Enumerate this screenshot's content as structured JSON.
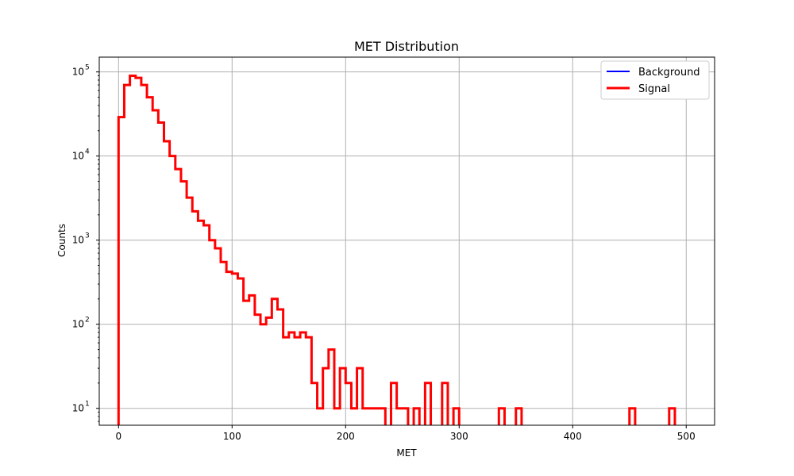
{
  "chart_data": {
    "type": "line",
    "title": "MET Distribution",
    "xlabel": "MET",
    "ylabel": "Counts",
    "x_ticks": [
      0,
      100,
      200,
      300,
      400,
      500
    ],
    "y_ticks": [
      {
        "value": 10,
        "base": "10",
        "exp": "1"
      },
      {
        "value": 100,
        "base": "10",
        "exp": "2"
      },
      {
        "value": 1000,
        "base": "10",
        "exp": "3"
      },
      {
        "value": 10000,
        "base": "10",
        "exp": "4"
      },
      {
        "value": 100000,
        "base": "10",
        "exp": "5"
      }
    ],
    "xlim": [
      -17,
      525
    ],
    "ylim": [
      6.3,
      150000
    ],
    "y_scale": "log",
    "grid": true,
    "legend_position": "top-right",
    "series": [
      {
        "name": "Background",
        "color": "#0000ff",
        "bin_edges": [],
        "counts": []
      },
      {
        "name": "Signal",
        "color": "#ff0000",
        "bin_edges": [
          0,
          5,
          10,
          15,
          20,
          25,
          30,
          35,
          40,
          45,
          50,
          55,
          60,
          65,
          70,
          75,
          80,
          85,
          90,
          95,
          100,
          105,
          110,
          115,
          120,
          125,
          130,
          135,
          140,
          145,
          150,
          155,
          160,
          165,
          170,
          175,
          180,
          185,
          190,
          195,
          200,
          205,
          210,
          215,
          220,
          225,
          230,
          235,
          240,
          245,
          250,
          255,
          260,
          265,
          270,
          275,
          280,
          285,
          290,
          295,
          300,
          305,
          310,
          315,
          320,
          325,
          330,
          335,
          340,
          345,
          350,
          355,
          360,
          365,
          370,
          375,
          380,
          385,
          390,
          395,
          400,
          405,
          410,
          415,
          420,
          425,
          430,
          435,
          440,
          445,
          450,
          455,
          460,
          465,
          470,
          475,
          480,
          485,
          490,
          495,
          500
        ],
        "counts": [
          29000,
          70000,
          90000,
          85000,
          70000,
          50000,
          35000,
          25000,
          15000,
          10000,
          7000,
          5000,
          3200,
          2200,
          1700,
          1500,
          1000,
          800,
          550,
          420,
          400,
          350,
          190,
          220,
          130,
          100,
          120,
          200,
          150,
          70,
          80,
          70,
          80,
          70,
          20,
          10,
          30,
          50,
          10,
          30,
          20,
          10,
          30,
          10,
          10,
          10,
          10,
          0,
          20,
          10,
          10,
          0,
          10,
          0,
          20,
          0,
          0,
          20,
          0,
          10,
          0,
          0,
          0,
          0,
          0,
          0,
          0,
          10,
          0,
          0,
          10,
          0,
          0,
          0,
          0,
          0,
          0,
          0,
          0,
          0,
          0,
          0,
          0,
          0,
          0,
          0,
          0,
          0,
          0,
          0,
          10,
          0,
          0,
          0,
          0,
          0,
          0,
          10,
          0,
          0
        ]
      }
    ]
  }
}
